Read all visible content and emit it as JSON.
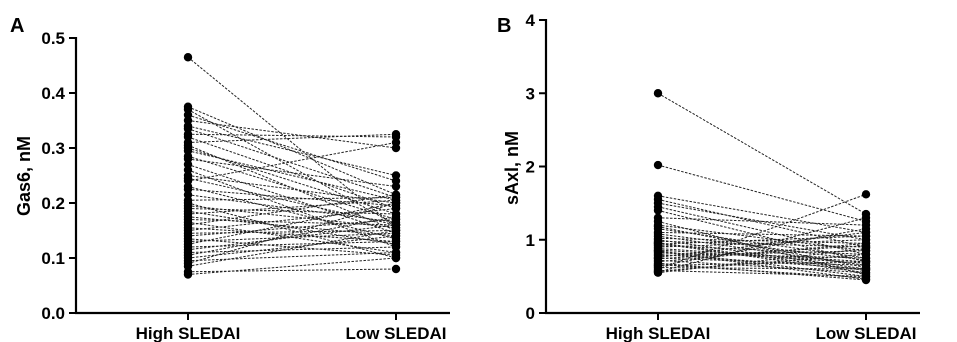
{
  "chart_data": [
    {
      "type": "scatter",
      "panel": "A",
      "ylabel": "Gas6, nM",
      "xlabel": "",
      "categories": [
        "High SLEDAI",
        "Low SLEDAI"
      ],
      "ylim": [
        0,
        0.5
      ],
      "yticks": [
        "0.0",
        "0.1",
        "0.2",
        "0.3",
        "0.4",
        "0.5"
      ],
      "grid": false,
      "pairs": [
        [
          0.465,
          0.155
        ],
        [
          0.375,
          0.215
        ],
        [
          0.37,
          0.16
        ],
        [
          0.36,
          0.24
        ],
        [
          0.35,
          0.3
        ],
        [
          0.34,
          0.25
        ],
        [
          0.335,
          0.21
        ],
        [
          0.325,
          0.32
        ],
        [
          0.32,
          0.19
        ],
        [
          0.31,
          0.325
        ],
        [
          0.305,
          0.15
        ],
        [
          0.3,
          0.18
        ],
        [
          0.295,
          0.205
        ],
        [
          0.285,
          0.17
        ],
        [
          0.28,
          0.23
        ],
        [
          0.27,
          0.145
        ],
        [
          0.26,
          0.12
        ],
        [
          0.25,
          0.2
        ],
        [
          0.245,
          0.16
        ],
        [
          0.24,
          0.31
        ],
        [
          0.23,
          0.135
        ],
        [
          0.225,
          0.195
        ],
        [
          0.215,
          0.165
        ],
        [
          0.205,
          0.21
        ],
        [
          0.2,
          0.1
        ],
        [
          0.195,
          0.155
        ],
        [
          0.19,
          0.18
        ],
        [
          0.185,
          0.125
        ],
        [
          0.18,
          0.205
        ],
        [
          0.175,
          0.14
        ],
        [
          0.17,
          0.16
        ],
        [
          0.165,
          0.11
        ],
        [
          0.16,
          0.215
        ],
        [
          0.155,
          0.13
        ],
        [
          0.15,
          0.19
        ],
        [
          0.145,
          0.15
        ],
        [
          0.14,
          0.17
        ],
        [
          0.135,
          0.105
        ],
        [
          0.13,
          0.145
        ],
        [
          0.125,
          0.2
        ],
        [
          0.12,
          0.13
        ],
        [
          0.115,
          0.16
        ],
        [
          0.11,
          0.12
        ],
        [
          0.105,
          0.175
        ],
        [
          0.1,
          0.14
        ],
        [
          0.095,
          0.11
        ],
        [
          0.085,
          0.15
        ],
        [
          0.075,
          0.08
        ],
        [
          0.07,
          0.1
        ],
        [
          0.09,
          0.2
        ]
      ]
    },
    {
      "type": "scatter",
      "panel": "B",
      "ylabel": "sAxl, nM",
      "xlabel": "",
      "categories": [
        "High SLEDAI",
        "Low SLEDAI"
      ],
      "ylim": [
        0,
        4
      ],
      "yticks": [
        "0",
        "1",
        "2",
        "3",
        "4"
      ],
      "grid": false,
      "pairs": [
        [
          3.0,
          1.35
        ],
        [
          2.02,
          1.25
        ],
        [
          1.6,
          1.1
        ],
        [
          1.55,
          0.9
        ],
        [
          1.5,
          1.0
        ],
        [
          1.45,
          0.8
        ],
        [
          1.4,
          0.7
        ],
        [
          1.3,
          1.2
        ],
        [
          1.2,
          0.85
        ],
        [
          1.15,
          0.75
        ],
        [
          1.1,
          1.05
        ],
        [
          1.05,
          0.65
        ],
        [
          1.02,
          0.95
        ],
        [
          1.0,
          0.6
        ],
        [
          0.98,
          0.9
        ],
        [
          0.95,
          0.55
        ],
        [
          0.92,
          0.8
        ],
        [
          0.9,
          1.0
        ],
        [
          0.88,
          0.7
        ],
        [
          0.85,
          0.5
        ],
        [
          0.82,
          0.75
        ],
        [
          0.8,
          0.6
        ],
        [
          0.78,
          0.85
        ],
        [
          0.75,
          0.65
        ],
        [
          0.72,
          0.55
        ],
        [
          0.7,
          0.95
        ],
        [
          0.68,
          0.45
        ],
        [
          0.65,
          0.7
        ],
        [
          0.62,
          0.6
        ],
        [
          0.6,
          1.62
        ],
        [
          0.58,
          0.5
        ],
        [
          0.57,
          0.8
        ],
        [
          0.56,
          1.3
        ],
        [
          0.66,
          0.48
        ],
        [
          0.76,
          1.1
        ],
        [
          0.86,
          0.68
        ],
        [
          0.96,
          0.58
        ],
        [
          1.08,
          0.72
        ],
        [
          1.18,
          0.62
        ],
        [
          1.25,
          0.52
        ],
        [
          0.64,
          1.15
        ],
        [
          0.74,
          0.92
        ],
        [
          0.84,
          0.46
        ],
        [
          0.94,
          1.05
        ],
        [
          0.55,
          0.88
        ]
      ]
    }
  ]
}
